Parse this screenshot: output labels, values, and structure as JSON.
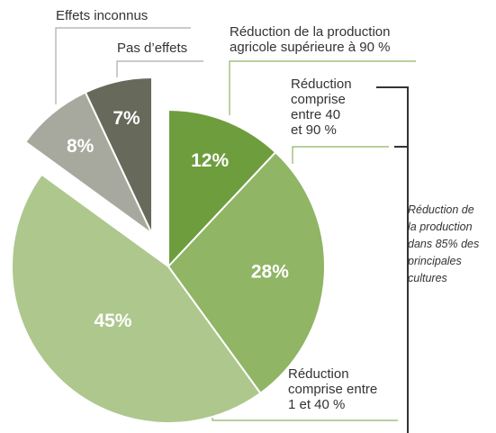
{
  "chart_data": {
    "type": "pie",
    "categories": [
      "Réduction de la production\nagricole supérieure à 90 %",
      "Réduction\ncomprise\nentre 40\net 90 %",
      "Réduction\ncomprise entre\n1 et 40 %",
      "Effets inconnus",
      "Pas d’effets"
    ],
    "values": [
      12,
      28,
      45,
      8,
      7
    ],
    "value_labels": [
      "12%",
      "28%",
      "45%",
      "8%",
      "7%"
    ],
    "colors": [
      "#6e9d3e",
      "#8fb565",
      "#adc78d",
      "#a8a99e",
      "#676a5a"
    ],
    "exploded": [
      false,
      false,
      false,
      true,
      true
    ],
    "annotation": "Réduction de\nla production\ndans 85% des\nprincipales\ncultures"
  }
}
